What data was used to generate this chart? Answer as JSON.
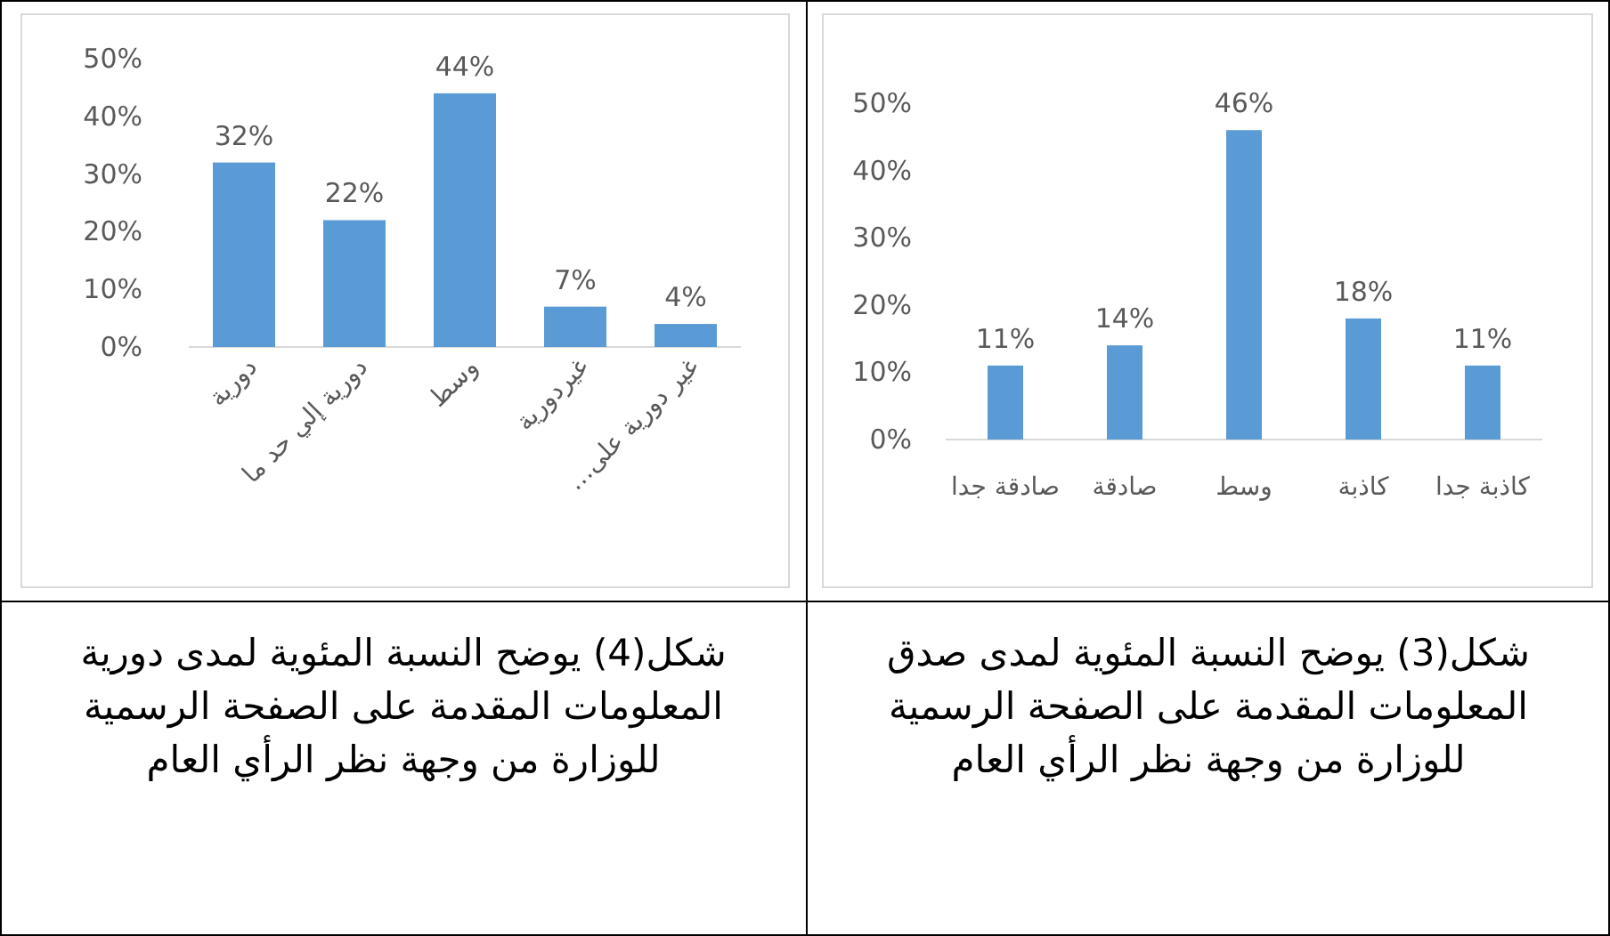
{
  "chart_data": [
    {
      "type": "bar",
      "categories": [
        "دورية",
        "دورية إلي حد ما",
        "وسط",
        "غيردورية",
        "غير دورية على…"
      ],
      "values": [
        32,
        22,
        44,
        7,
        4
      ],
      "value_labels": [
        "32%",
        "22%",
        "44%",
        "7%",
        "4%"
      ],
      "color": "#5b9bd5",
      "ylim": [
        0,
        50
      ],
      "yticks": [
        {
          "value": 0,
          "label": "0%"
        },
        {
          "value": 10,
          "label": "10%"
        },
        {
          "value": 20,
          "label": "20%"
        },
        {
          "value": 30,
          "label": "30%"
        },
        {
          "value": 40,
          "label": "40%"
        },
        {
          "value": 50,
          "label": "50%"
        }
      ],
      "annotations": [
        "شكل(4) يوضح النسبة المئوية لمدى دورية المعلومات المقدمة على الصفحة الرسمية للوزارة من وجهة نظر الرأي العام"
      ]
    },
    {
      "type": "bar",
      "categories": [
        "صادقة جدا",
        "صادقة",
        "وسط",
        "كاذبة",
        "كاذبة جدا"
      ],
      "values": [
        11,
        14,
        46,
        18,
        11
      ],
      "value_labels": [
        "11%",
        "14%",
        "46%",
        "18%",
        "11%"
      ],
      "color": "#5b9bd5",
      "ylim": [
        0,
        50
      ],
      "yticks": [
        {
          "value": 0,
          "label": "0%"
        },
        {
          "value": 10,
          "label": "10%"
        },
        {
          "value": 20,
          "label": "20%"
        },
        {
          "value": 30,
          "label": "30%"
        },
        {
          "value": 40,
          "label": "40%"
        },
        {
          "value": 50,
          "label": "50%"
        }
      ],
      "annotations": [
        "شكل(3) يوضح النسبة المئوية لمدى صدق المعلومات المقدمة على الصفحة الرسمية للوزارة من وجهة نظر الرأي العام"
      ]
    }
  ]
}
